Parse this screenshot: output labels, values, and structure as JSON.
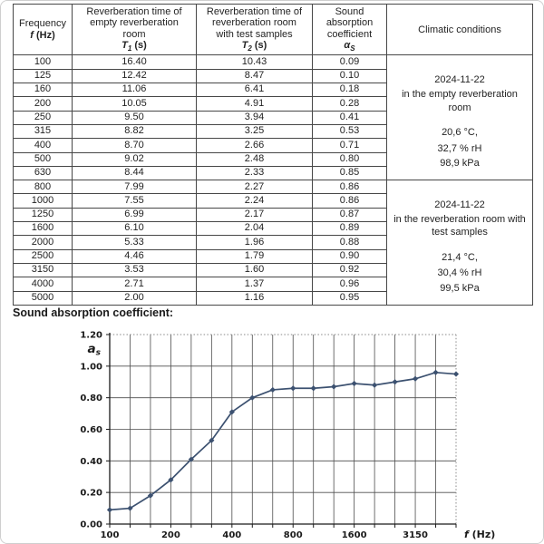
{
  "page": {
    "chart_heading": "Sound absorption coefficient:"
  },
  "table": {
    "header": {
      "col1": {
        "line1": "Frequency",
        "symbol": "f",
        "unit": "(Hz)"
      },
      "col2": {
        "lines": [
          "Reverberation time of",
          "empty reverberation",
          "room"
        ],
        "symbol": "T",
        "sub": "1",
        "unit": "(s)"
      },
      "col3": {
        "lines": [
          "Reverberation time of",
          "reverberation room",
          "with test samples"
        ],
        "symbol": "T",
        "sub": "2",
        "unit": "(s)"
      },
      "col4": {
        "lines": [
          "Sound",
          "absorption",
          "coefficient"
        ],
        "symbol": "α",
        "sub": "S",
        "unit": ""
      },
      "col5": {
        "line1": "Climatic conditions"
      }
    },
    "rows": [
      {
        "f": "100",
        "t1": "16.40",
        "t2": "10.43",
        "a": "0.09"
      },
      {
        "f": "125",
        "t1": "12.42",
        "t2": "8.47",
        "a": "0.10"
      },
      {
        "f": "160",
        "t1": "11.06",
        "t2": "6.41",
        "a": "0.18"
      },
      {
        "f": "200",
        "t1": "10.05",
        "t2": "4.91",
        "a": "0.28"
      },
      {
        "f": "250",
        "t1": "9.50",
        "t2": "3.94",
        "a": "0.41"
      },
      {
        "f": "315",
        "t1": "8.82",
        "t2": "3.25",
        "a": "0.53"
      },
      {
        "f": "400",
        "t1": "8.70",
        "t2": "2.66",
        "a": "0.71"
      },
      {
        "f": "500",
        "t1": "9.02",
        "t2": "2.48",
        "a": "0.80"
      },
      {
        "f": "630",
        "t1": "8.44",
        "t2": "2.33",
        "a": "0.85"
      },
      {
        "f": "800",
        "t1": "7.99",
        "t2": "2.27",
        "a": "0.86"
      },
      {
        "f": "1000",
        "t1": "7.55",
        "t2": "2.24",
        "a": "0.86"
      },
      {
        "f": "1250",
        "t1": "6.99",
        "t2": "2.17",
        "a": "0.87"
      },
      {
        "f": "1600",
        "t1": "6.10",
        "t2": "2.04",
        "a": "0.89"
      },
      {
        "f": "2000",
        "t1": "5.33",
        "t2": "1.96",
        "a": "0.88"
      },
      {
        "f": "2500",
        "t1": "4.46",
        "t2": "1.79",
        "a": "0.90"
      },
      {
        "f": "3150",
        "t1": "3.53",
        "t2": "1.60",
        "a": "0.92"
      },
      {
        "f": "4000",
        "t1": "2.71",
        "t2": "1.37",
        "a": "0.96"
      },
      {
        "f": "5000",
        "t1": "2.00",
        "t2": "1.16",
        "a": "0.95"
      }
    ],
    "climatic": [
      {
        "date": "2024-11-22",
        "location": "in the empty reverberation room",
        "temp": "20,6 °C,",
        "rh": "32,7 % rH",
        "pressure": "98,9 kPa"
      },
      {
        "date": "2024-11-22",
        "location": "in the reverberation room with test samples",
        "temp": "21,4 °C,",
        "rh": "30,4 % rH",
        "pressure": "99,5 kPa"
      }
    ]
  },
  "chart_data": {
    "type": "line",
    "title": "Sound absorption coefficient:",
    "x": [
      100,
      125,
      160,
      200,
      250,
      315,
      400,
      500,
      630,
      800,
      1000,
      1250,
      1600,
      2000,
      2500,
      3150,
      4000,
      5000
    ],
    "values": [
      0.09,
      0.1,
      0.18,
      0.28,
      0.41,
      0.53,
      0.71,
      0.8,
      0.85,
      0.86,
      0.86,
      0.87,
      0.89,
      0.88,
      0.9,
      0.92,
      0.96,
      0.95
    ],
    "ylabel_symbol": "a",
    "ylabel_sub": "s",
    "xlabel_symbol": "f",
    "xlabel_unit": "(Hz)",
    "ylim": [
      0,
      1.2
    ],
    "ytick_step": 0.2,
    "ytick_labels": [
      "0.00",
      "0.20",
      "0.40",
      "0.60",
      "0.80",
      "1.00",
      "1.20"
    ],
    "x_axis_labels": [
      "100",
      "200",
      "400",
      "800",
      "1600",
      "3150"
    ],
    "x_axis_label_indices": [
      0,
      3,
      6,
      9,
      12,
      15
    ],
    "grid": true,
    "legend": "none",
    "line_color": "#3c5170",
    "grid_color": "#4d4d4d",
    "axis_color": "#1a1a1a"
  }
}
